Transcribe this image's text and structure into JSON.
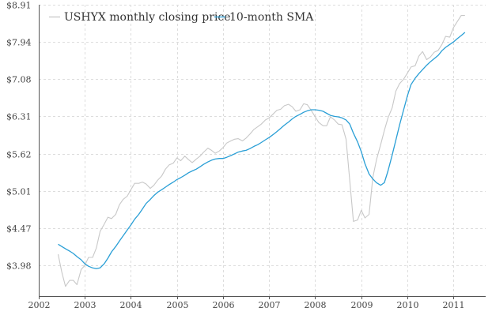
{
  "chart_data": {
    "type": "line",
    "title": "",
    "xlabel": "",
    "ylabel": "",
    "y_scale": "log",
    "xlim": [
      2002.0,
      2011.7
    ],
    "ylim": [
      3.62,
      8.91
    ],
    "x_ticks": [
      2002,
      2003,
      2004,
      2005,
      2006,
      2007,
      2008,
      2009,
      2010,
      2011
    ],
    "x_tick_labels": [
      "2002",
      "2003",
      "2004",
      "2005",
      "2006",
      "2007",
      "2008",
      "2009",
      "2010",
      "2011"
    ],
    "y_ticks": [
      3.98,
      4.47,
      5.01,
      5.62,
      6.31,
      7.08,
      7.94,
      8.91
    ],
    "y_tick_labels": [
      "$3.98",
      "$4.47",
      "$5.01",
      "$5.62",
      "$6.31",
      "$7.08",
      "$7.94",
      "$8.91"
    ],
    "grid": true,
    "legend_position": "top-left",
    "series": [
      {
        "name": "USHYX monthly closing price",
        "color": "#c8c8c8",
        "x": [
          2002.42,
          2002.5,
          2002.58,
          2002.67,
          2002.75,
          2002.83,
          2002.92,
          2003.0,
          2003.08,
          2003.17,
          2003.25,
          2003.33,
          2003.42,
          2003.5,
          2003.58,
          2003.67,
          2003.75,
          2003.83,
          2003.92,
          2004.0,
          2004.08,
          2004.17,
          2004.25,
          2004.33,
          2004.42,
          2004.5,
          2004.58,
          2004.67,
          2004.75,
          2004.83,
          2004.92,
          2005.0,
          2005.08,
          2005.17,
          2005.25,
          2005.33,
          2005.42,
          2005.5,
          2005.58,
          2005.67,
          2005.75,
          2005.83,
          2005.92,
          2006.0,
          2006.08,
          2006.17,
          2006.25,
          2006.33,
          2006.42,
          2006.5,
          2006.58,
          2006.67,
          2006.75,
          2006.83,
          2006.92,
          2007.0,
          2007.08,
          2007.17,
          2007.25,
          2007.33,
          2007.42,
          2007.5,
          2007.58,
          2007.67,
          2007.75,
          2007.83,
          2007.92,
          2008.0,
          2008.08,
          2008.17,
          2008.25,
          2008.33,
          2008.42,
          2008.5,
          2008.58,
          2008.67,
          2008.75,
          2008.83,
          2008.92,
          2009.0,
          2009.08,
          2009.17,
          2009.25,
          2009.33,
          2009.42,
          2009.5,
          2009.58,
          2009.67,
          2009.75,
          2009.83,
          2009.92,
          2010.0,
          2010.08,
          2010.17,
          2010.25,
          2010.33,
          2010.42,
          2010.5,
          2010.58,
          2010.67,
          2010.75,
          2010.83,
          2010.92,
          2011.0,
          2011.08,
          2011.17,
          2011.25
        ],
        "values": [
          4.12,
          3.9,
          3.73,
          3.8,
          3.8,
          3.75,
          3.93,
          3.98,
          4.08,
          4.08,
          4.2,
          4.42,
          4.52,
          4.62,
          4.6,
          4.66,
          4.8,
          4.88,
          4.93,
          5.03,
          5.13,
          5.13,
          5.15,
          5.12,
          5.05,
          5.1,
          5.18,
          5.25,
          5.36,
          5.43,
          5.46,
          5.55,
          5.5,
          5.58,
          5.52,
          5.47,
          5.53,
          5.58,
          5.65,
          5.72,
          5.68,
          5.63,
          5.67,
          5.73,
          5.81,
          5.85,
          5.88,
          5.89,
          5.85,
          5.9,
          5.97,
          6.06,
          6.11,
          6.16,
          6.24,
          6.28,
          6.35,
          6.43,
          6.45,
          6.52,
          6.55,
          6.5,
          6.41,
          6.44,
          6.56,
          6.54,
          6.42,
          6.3,
          6.19,
          6.13,
          6.13,
          6.3,
          6.24,
          6.16,
          6.15,
          5.88,
          5.17,
          4.56,
          4.58,
          4.72,
          4.61,
          4.66,
          5.22,
          5.52,
          5.78,
          6.04,
          6.28,
          6.48,
          6.82,
          6.98,
          7.08,
          7.21,
          7.35,
          7.38,
          7.6,
          7.71,
          7.52,
          7.58,
          7.69,
          7.74,
          7.88,
          8.08,
          8.06,
          8.3,
          8.45,
          8.62,
          8.62
        ]
      },
      {
        "name": "10-month SMA",
        "color": "#2a9fd6",
        "x": [
          2002.42,
          2002.5,
          2002.58,
          2002.67,
          2002.75,
          2002.83,
          2002.92,
          2003.0,
          2003.08,
          2003.17,
          2003.25,
          2003.33,
          2003.42,
          2003.5,
          2003.58,
          2003.67,
          2003.75,
          2003.83,
          2003.92,
          2004.0,
          2004.08,
          2004.17,
          2004.25,
          2004.33,
          2004.42,
          2004.5,
          2004.58,
          2004.67,
          2004.75,
          2004.83,
          2004.92,
          2005.0,
          2005.08,
          2005.17,
          2005.25,
          2005.33,
          2005.42,
          2005.5,
          2005.58,
          2005.67,
          2005.75,
          2005.83,
          2005.92,
          2006.0,
          2006.08,
          2006.17,
          2006.25,
          2006.33,
          2006.42,
          2006.5,
          2006.58,
          2006.67,
          2006.75,
          2006.83,
          2006.92,
          2007.0,
          2007.08,
          2007.17,
          2007.25,
          2007.33,
          2007.42,
          2007.5,
          2007.58,
          2007.67,
          2007.75,
          2007.83,
          2007.92,
          2008.0,
          2008.08,
          2008.17,
          2008.25,
          2008.33,
          2008.42,
          2008.5,
          2008.58,
          2008.67,
          2008.75,
          2008.83,
          2008.92,
          2009.0,
          2009.08,
          2009.17,
          2009.25,
          2009.33,
          2009.42,
          2009.5,
          2009.58,
          2009.67,
          2009.75,
          2009.83,
          2009.92,
          2010.0,
          2010.08,
          2010.17,
          2010.25,
          2010.33,
          2010.42,
          2010.5,
          2010.58,
          2010.67,
          2010.75,
          2010.83,
          2010.92,
          2011.0,
          2011.08,
          2011.17,
          2011.25
        ],
        "values": [
          4.25,
          4.22,
          4.19,
          4.16,
          4.13,
          4.09,
          4.05,
          4.0,
          3.97,
          3.95,
          3.94,
          3.95,
          4.0,
          4.07,
          4.15,
          4.22,
          4.29,
          4.36,
          4.44,
          4.51,
          4.59,
          4.66,
          4.74,
          4.82,
          4.88,
          4.94,
          4.99,
          5.03,
          5.07,
          5.11,
          5.15,
          5.19,
          5.22,
          5.26,
          5.3,
          5.33,
          5.36,
          5.4,
          5.44,
          5.48,
          5.51,
          5.53,
          5.54,
          5.54,
          5.56,
          5.59,
          5.62,
          5.65,
          5.67,
          5.68,
          5.71,
          5.75,
          5.78,
          5.82,
          5.87,
          5.91,
          5.96,
          6.02,
          6.08,
          6.14,
          6.2,
          6.26,
          6.31,
          6.35,
          6.39,
          6.42,
          6.44,
          6.44,
          6.43,
          6.41,
          6.37,
          6.33,
          6.31,
          6.3,
          6.28,
          6.24,
          6.16,
          5.99,
          5.83,
          5.66,
          5.45,
          5.28,
          5.2,
          5.14,
          5.1,
          5.14,
          5.33,
          5.6,
          5.86,
          6.14,
          6.44,
          6.72,
          6.96,
          7.1,
          7.2,
          7.29,
          7.39,
          7.47,
          7.54,
          7.62,
          7.73,
          7.81,
          7.88,
          7.94,
          8.02,
          8.1,
          8.18
        ]
      }
    ]
  }
}
